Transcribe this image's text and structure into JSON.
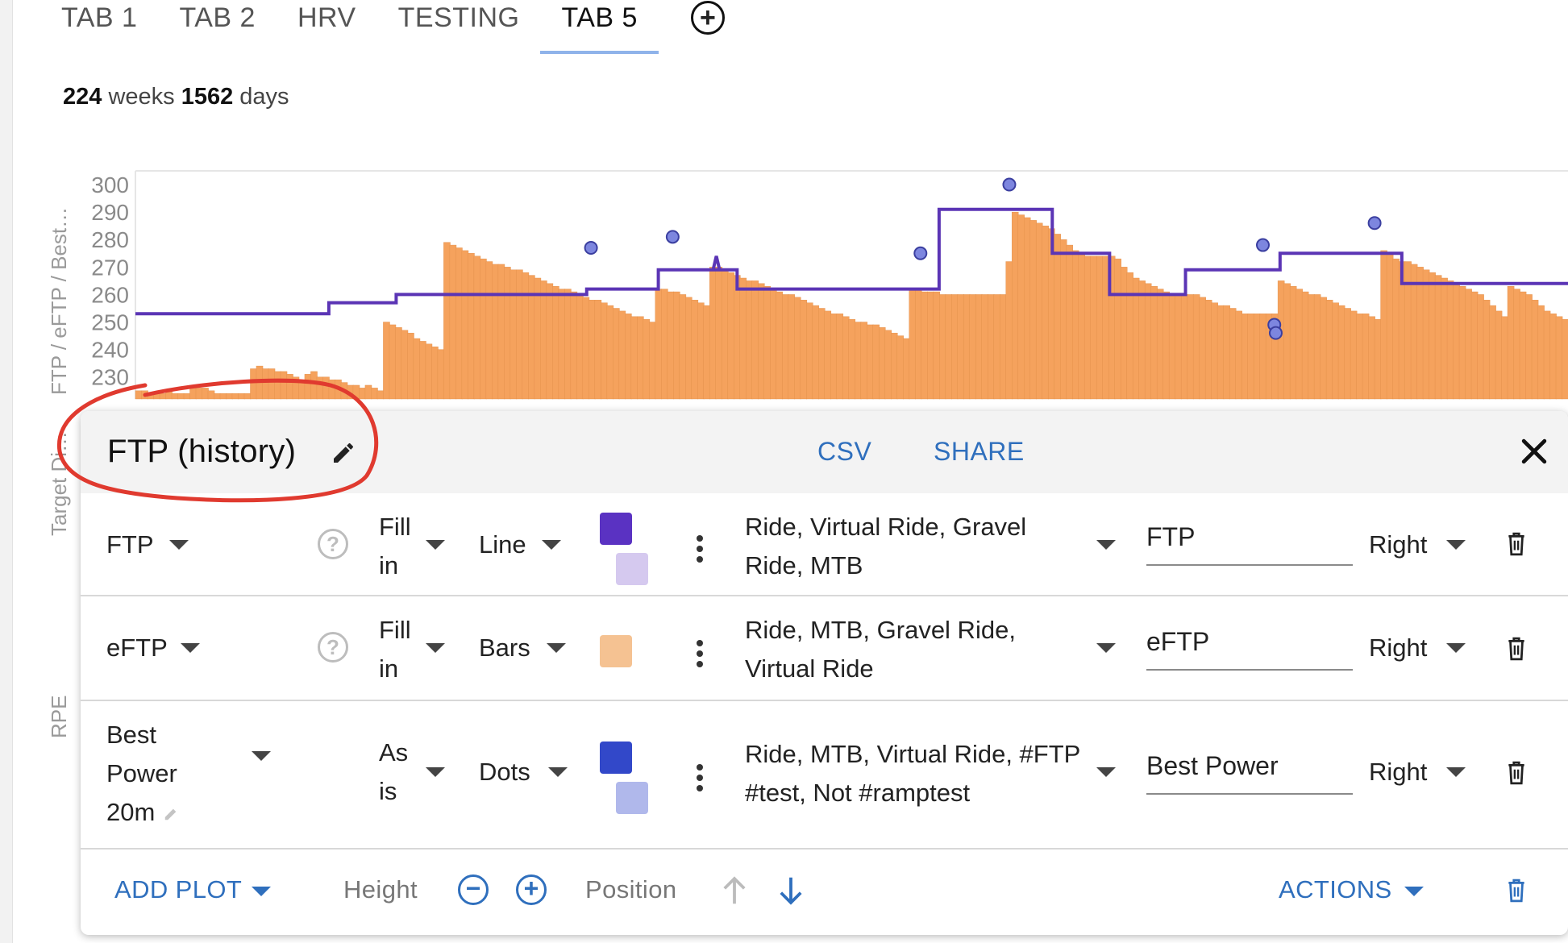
{
  "tabs": [
    {
      "label": "TAB 1",
      "active": false
    },
    {
      "label": "TAB 2",
      "active": false
    },
    {
      "label": "HRV",
      "active": false
    },
    {
      "label": "TESTING",
      "active": false
    },
    {
      "label": "TAB 5",
      "active": true
    }
  ],
  "add_tab_icon": "plus-circle-icon",
  "summary": {
    "weeks": "224",
    "weeks_label": "weeks",
    "days": "1562",
    "days_label": "days"
  },
  "axis_titles": {
    "main": "FTP / eFTP / Best…",
    "secondary": "Target Di…",
    "rpe": "RPE"
  },
  "chart_data": {
    "type": "bar",
    "y_ticks": [
      "300",
      "290",
      "280",
      "270",
      "260",
      "250",
      "240",
      "230"
    ],
    "ylim": [
      222,
      305
    ],
    "series": [
      {
        "name": "eFTP",
        "type": "bar",
        "color": "#f5a25d",
        "values": [
          225,
          225,
          224,
          224,
          224,
          225,
          224,
          224,
          224,
          227,
          226,
          226,
          225,
          224,
          224,
          224,
          224,
          224,
          224,
          233,
          234,
          233,
          233,
          232,
          232,
          231,
          230,
          229,
          231,
          232,
          230,
          230,
          229,
          229,
          228,
          227,
          227,
          226,
          227,
          226,
          225,
          250,
          249,
          248,
          247,
          246,
          244,
          243,
          242,
          241,
          240,
          279,
          278,
          277,
          276,
          275,
          274,
          273,
          272,
          271,
          271,
          270,
          269,
          269,
          268,
          267,
          266,
          265,
          264,
          263,
          262,
          262,
          261,
          260,
          259,
          258,
          258,
          257,
          256,
          255,
          254,
          253,
          252,
          252,
          251,
          250,
          262,
          262,
          261,
          261,
          260,
          259,
          258,
          257,
          256,
          270,
          270,
          269,
          268,
          267,
          266,
          265,
          265,
          264,
          263,
          262,
          261,
          260,
          260,
          259,
          258,
          257,
          256,
          255,
          254,
          253,
          253,
          252,
          251,
          250,
          250,
          249,
          249,
          248,
          247,
          246,
          245,
          244,
          262,
          262,
          261,
          261,
          261,
          260,
          260,
          260,
          260,
          260,
          260,
          260,
          260,
          260,
          260,
          260,
          272,
          290,
          289,
          288,
          287,
          286,
          285,
          284,
          282,
          280,
          278,
          276,
          275,
          274,
          274,
          274,
          274,
          274,
          273,
          270,
          268,
          266,
          265,
          264,
          263,
          262,
          261,
          260,
          260,
          260,
          260,
          260,
          259,
          258,
          257,
          256,
          256,
          255,
          254,
          253,
          253,
          253,
          253,
          253,
          253,
          265,
          264,
          263,
          262,
          261,
          260,
          260,
          259,
          258,
          257,
          256,
          255,
          254,
          253,
          253,
          252,
          251,
          276,
          275,
          273,
          272,
          272,
          271,
          270,
          269,
          268,
          267,
          266,
          265,
          264,
          263,
          262,
          261,
          260,
          258,
          256,
          254,
          252,
          263,
          262,
          261,
          260,
          258,
          256,
          254,
          253,
          252,
          251
        ]
      },
      {
        "name": "FTP",
        "type": "step-line",
        "color": "#5b35b5",
        "segments": [
          {
            "from": 0.0,
            "to": 0.135,
            "value": 253
          },
          {
            "from": 0.135,
            "to": 0.182,
            "value": 257
          },
          {
            "from": 0.182,
            "to": 0.23,
            "value": 260
          },
          {
            "from": 0.23,
            "to": 0.315,
            "value": 260
          },
          {
            "from": 0.315,
            "to": 0.365,
            "value": 262
          },
          {
            "from": 0.365,
            "to": 0.42,
            "value": 269
          },
          {
            "from": 0.42,
            "to": 0.561,
            "value": 262
          },
          {
            "from": 0.561,
            "to": 0.612,
            "value": 291
          },
          {
            "from": 0.612,
            "to": 0.64,
            "value": 291
          },
          {
            "from": 0.64,
            "to": 0.68,
            "value": 275
          },
          {
            "from": 0.68,
            "to": 0.733,
            "value": 260
          },
          {
            "from": 0.733,
            "to": 0.799,
            "value": 269
          },
          {
            "from": 0.799,
            "to": 0.884,
            "value": 275
          },
          {
            "from": 0.884,
            "to": 1.0,
            "value": 264
          }
        ]
      },
      {
        "name": "Best Power",
        "type": "scatter",
        "color": "#7d86df",
        "points": [
          {
            "x": 0.318,
            "y": 277
          },
          {
            "x": 0.375,
            "y": 281
          },
          {
            "x": 0.548,
            "y": 275
          },
          {
            "x": 0.61,
            "y": 300
          },
          {
            "x": 0.787,
            "y": 278
          },
          {
            "x": 0.795,
            "y": 249
          },
          {
            "x": 0.796,
            "y": 246
          },
          {
            "x": 0.865,
            "y": 286
          }
        ]
      }
    ]
  },
  "panel": {
    "title": "FTP (history)",
    "edit_icon": "pencil-icon",
    "csv_label": "CSV",
    "share_label": "SHARE",
    "close_icon": "close-icon",
    "rows": [
      {
        "field": "FTP",
        "fill_mode": "Fill in",
        "plot_type": "Line",
        "color": "#5a32c2",
        "color2": "#d5c9ef",
        "filter": "Ride, Virtual Ride, Gravel Ride, MTB",
        "label": "FTP",
        "axis": "Right"
      },
      {
        "field": "eFTP",
        "fill_mode": "Fill in",
        "plot_type": "Bars",
        "color": "#f5c292",
        "color2": "",
        "filter": "Ride, MTB, Gravel Ride, Virtual Ride",
        "label": "eFTP",
        "axis": "Right"
      },
      {
        "field": "Best Power 20m",
        "fill_mode": "As is",
        "plot_type": "Dots",
        "color": "#3248c9",
        "color2": "#b0b8eb",
        "filter": "Ride, MTB, Virtual Ride, #FTP #test, Not #ramptest",
        "label": "Best Power",
        "axis": "Right"
      }
    ],
    "footer": {
      "add_plot": "ADD PLOT",
      "height_label": "Height",
      "position_label": "Position",
      "actions_label": "ACTIONS"
    }
  }
}
